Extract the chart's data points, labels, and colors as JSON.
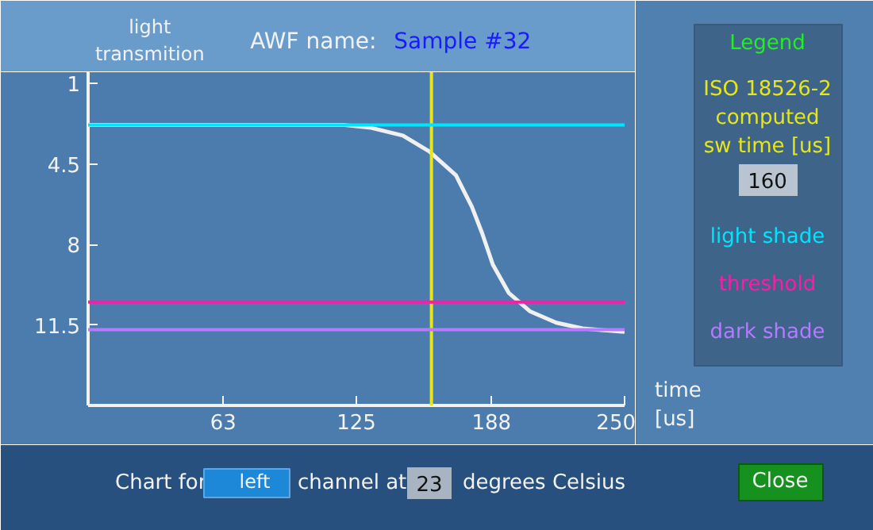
{
  "chart_data": {
    "type": "line",
    "title": "AWF name:",
    "subtitle": "Sample #32",
    "ylabel": "light\ntransmition",
    "xlabel": "time\n[us]",
    "legend_title": "Legend",
    "x": [
      0,
      119.6,
      131.9,
      146.7,
      159,
      171.4,
      178.8,
      183.6,
      188.6,
      196,
      205.8,
      218.2,
      230.5,
      250
    ],
    "series": [
      {
        "color": "#f0f0f0",
        "values": [
          2.8,
          2.8,
          2.92,
          3.26,
          3.95,
          4.98,
          6.35,
          7.5,
          8.87,
          10.1,
          10.9,
          11.4,
          11.65,
          11.8
        ]
      }
    ],
    "xlim": [
      0,
      250
    ],
    "ylim": [
      15,
      0.5
    ],
    "xticks": [
      63,
      125,
      188,
      250
    ],
    "yticks": [
      1,
      4.5,
      8,
      11.5
    ],
    "marker": "none",
    "line_style": "solid",
    "legend": "right",
    "ref_lines": [
      {
        "axis": "x",
        "value": 160,
        "label": "ISO 18526-2\ncomputed\nsw time [us]",
        "color": "#e6e619"
      },
      {
        "axis": "y",
        "value": 2.8,
        "label": "light shade",
        "color": "#00e5ff"
      },
      {
        "axis": "y",
        "value": 10.5,
        "label": "threshold",
        "color": "#ff1aa8"
      },
      {
        "axis": "y",
        "value": 11.7,
        "label": "dark shade",
        "color": "#b57bff"
      }
    ],
    "annotations": [
      "Chart for",
      "left",
      "channel at",
      "23",
      "degrees Celsius",
      "Close",
      "160"
    ]
  }
}
